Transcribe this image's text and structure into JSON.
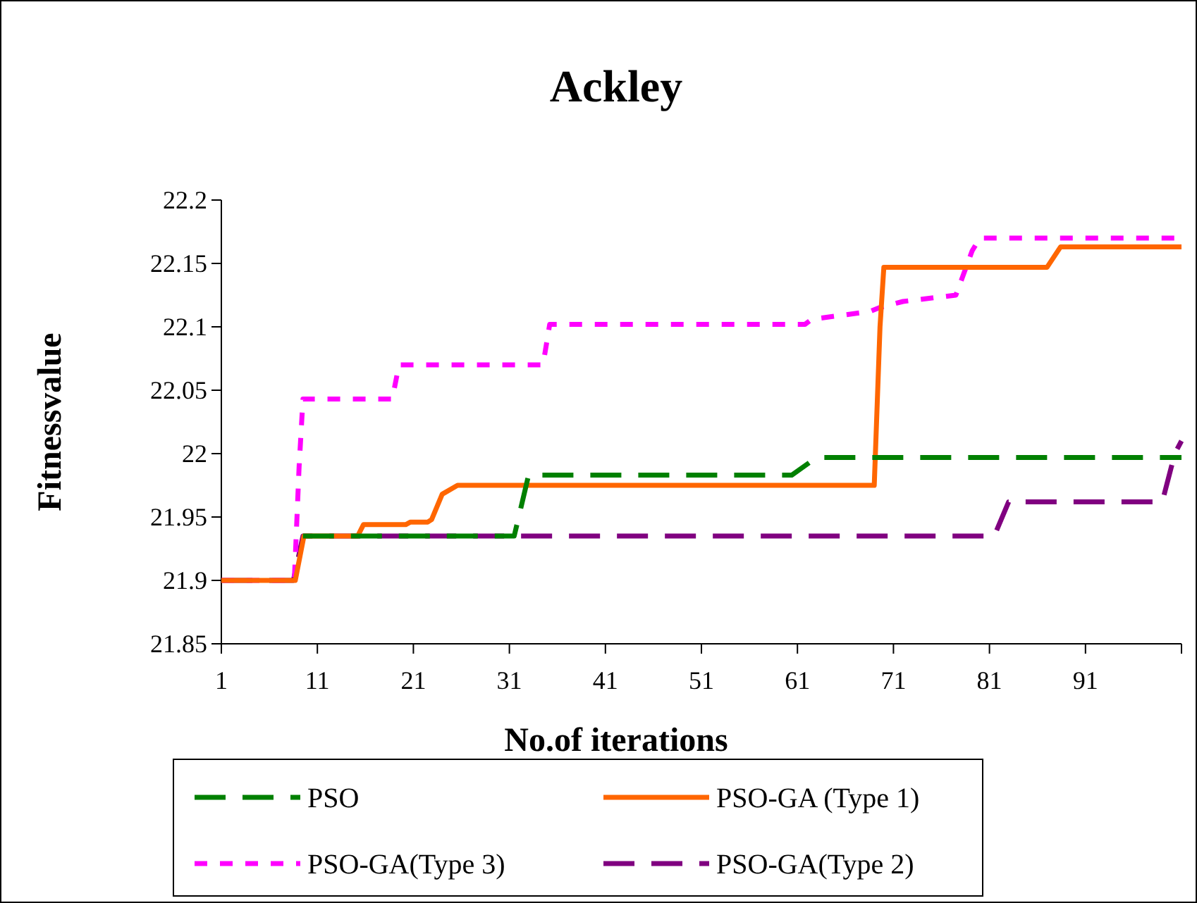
{
  "chart_data": {
    "type": "line",
    "title": "Ackley",
    "xlabel": "No.of iterations",
    "ylabel": "Fitnessvalue",
    "xlim": [
      1,
      101
    ],
    "xticks": [
      1,
      11,
      21,
      31,
      41,
      51,
      61,
      71,
      81,
      91
    ],
    "ylim": [
      21.85,
      22.2
    ],
    "yticks": [
      21.85,
      21.9,
      21.95,
      22,
      22.05,
      22.1,
      22.15,
      22.2
    ],
    "grid": false,
    "legend": "bottom",
    "series": [
      {
        "name": "PSO",
        "color": "#008000",
        "line_style": "dashed",
        "x": [
          9.5,
          31.5,
          33,
          60.4,
          63,
          101
        ],
        "values": [
          21.935,
          21.935,
          21.983,
          21.983,
          21.997,
          21.997
        ]
      },
      {
        "name": "PSO-GA (Type 1)",
        "color": "#ff6600",
        "line_style": "solid",
        "x": [
          1,
          8.7,
          9.6,
          15.2,
          15.8,
          20.2,
          20.7,
          22.5,
          22.9,
          24,
          25.6,
          69,
          69.6,
          70,
          87,
          88.4,
          101
        ],
        "values": [
          21.9,
          21.9,
          21.935,
          21.935,
          21.944,
          21.944,
          21.946,
          21.946,
          21.948,
          21.968,
          21.975,
          21.975,
          22.1,
          22.147,
          22.147,
          22.163,
          22.163
        ]
      },
      {
        "name": "PSO-GA(Type 3)",
        "color": "#ff00ff",
        "line_style": "dotted",
        "x": [
          1,
          8.6,
          9.1,
          9.5,
          18.8,
          19.5,
          34.5,
          35.2,
          61.8,
          62.5,
          68.5,
          69.5,
          72,
          77.5,
          79.2,
          80,
          101
        ],
        "values": [
          21.9,
          21.9,
          21.99,
          22.043,
          22.043,
          22.07,
          22.07,
          22.102,
          22.102,
          22.106,
          22.112,
          22.115,
          22.12,
          22.125,
          22.16,
          22.17,
          22.17
        ]
      },
      {
        "name": "PSO-GA(Type 2)",
        "color": "#800080",
        "line_style": "dashed",
        "x": [
          1,
          8.5,
          9.5,
          81.5,
          83,
          99,
          100.3,
          101
        ],
        "values": [
          21.9,
          21.9,
          21.935,
          21.935,
          21.962,
          21.962,
          22,
          22.01
        ]
      }
    ]
  }
}
